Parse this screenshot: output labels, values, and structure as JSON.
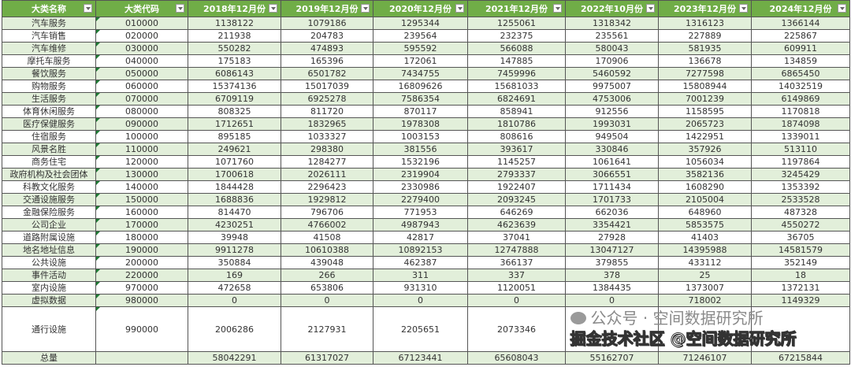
{
  "headers": [
    "大类名称",
    "大类代码",
    "2018年12月份",
    "2019年12月份",
    "2020年12月份",
    "2021年12月份",
    "2022年10月份",
    "2023年12月份",
    "2024年12月份"
  ],
  "rows": [
    [
      "汽车服务",
      "010000",
      "1138122",
      "1079186",
      "1295344",
      "1255061",
      "1318342",
      "1316123",
      "1366144"
    ],
    [
      "汽车销售",
      "020000",
      "211938",
      "204783",
      "239564",
      "232375",
      "235561",
      "227889",
      "225867"
    ],
    [
      "汽车维修",
      "030000",
      "550282",
      "474893",
      "595592",
      "566088",
      "580043",
      "581935",
      "609911"
    ],
    [
      "摩托车服务",
      "040000",
      "175183",
      "165396",
      "172061",
      "147885",
      "170906",
      "136678",
      "134859"
    ],
    [
      "餐饮服务",
      "050000",
      "6086143",
      "6501782",
      "7434755",
      "7459996",
      "5460592",
      "7277598",
      "6865450"
    ],
    [
      "购物服务",
      "060000",
      "15374136",
      "15017039",
      "16809626",
      "15681033",
      "9975007",
      "15808944",
      "14032519"
    ],
    [
      "生活服务",
      "070000",
      "6709119",
      "6925278",
      "7586354",
      "6824691",
      "4753006",
      "7001239",
      "6149869"
    ],
    [
      "体育休闲服务",
      "080000",
      "808325",
      "811720",
      "870117",
      "858941",
      "912556",
      "1158595",
      "1170818"
    ],
    [
      "医疗保健服务",
      "090000",
      "1712651",
      "1832965",
      "1978308",
      "1810786",
      "1993031",
      "2065723",
      "1874098"
    ],
    [
      "住宿服务",
      "100000",
      "895185",
      "1033327",
      "1003153",
      "808616",
      "949504",
      "1422951",
      "1339011"
    ],
    [
      "风景名胜",
      "110000",
      "249621",
      "298380",
      "381556",
      "393617",
      "330846",
      "357926",
      "513110"
    ],
    [
      "商务住宅",
      "120000",
      "1071760",
      "1284277",
      "1532196",
      "1145257",
      "1061641",
      "1056034",
      "1197864"
    ],
    [
      "政府机构及社会团体",
      "130000",
      "1700618",
      "2026111",
      "2319904",
      "2793337",
      "3066551",
      "3582136",
      "3245429"
    ],
    [
      "科教文化服务",
      "140000",
      "1844428",
      "2296423",
      "2330986",
      "1922407",
      "1711434",
      "1608290",
      "1353392"
    ],
    [
      "交通设施服务",
      "150000",
      "1688836",
      "1929812",
      "2279400",
      "2093245",
      "1701733",
      "2105004",
      "2533528"
    ],
    [
      "金融保险服务",
      "160000",
      "814470",
      "796706",
      "771953",
      "646269",
      "662036",
      "648960",
      "487328"
    ],
    [
      "公司企业",
      "170000",
      "4230251",
      "4766002",
      "4987943",
      "4623639",
      "3354421",
      "5853575",
      "4550272"
    ],
    [
      "道路附属设施",
      "180000",
      "39948",
      "41508",
      "42817",
      "37041",
      "27928",
      "41403",
      "36705"
    ],
    [
      "地名地址信息",
      "190000",
      "9911278",
      "10610388",
      "10892153",
      "12747888",
      "13047127",
      "14395988",
      "14581579"
    ],
    [
      "公共设施",
      "200000",
      "350884",
      "439048",
      "462387",
      "366137",
      "379855",
      "433112",
      "352149"
    ],
    [
      "事件活动",
      "220000",
      "169",
      "266",
      "311",
      "337",
      "378",
      "25",
      "18"
    ],
    [
      "室内设施",
      "970000",
      "472658",
      "653806",
      "931310",
      "1120051",
      "1384435",
      "1373007",
      "1372131"
    ],
    [
      "虚拟数据",
      "980000",
      "0",
      "0",
      "0",
      "0",
      "0",
      "718002",
      "1149329"
    ],
    [
      "通行设施",
      "990000",
      "2006286",
      "2127931",
      "2205651",
      "2073346",
      "",
      "",
      ""
    ],
    [
      "总量",
      "",
      "58042291",
      "61317027",
      "67123441",
      "65608043",
      "55162707",
      "71246107",
      "67215844"
    ]
  ],
  "colors": {
    "header": "#70ad47",
    "band": "#e2efda"
  },
  "watermark": {
    "line1": "公众号 · 空间数据研究所",
    "line2": "掘金技术社区 @空间数据研究所"
  }
}
